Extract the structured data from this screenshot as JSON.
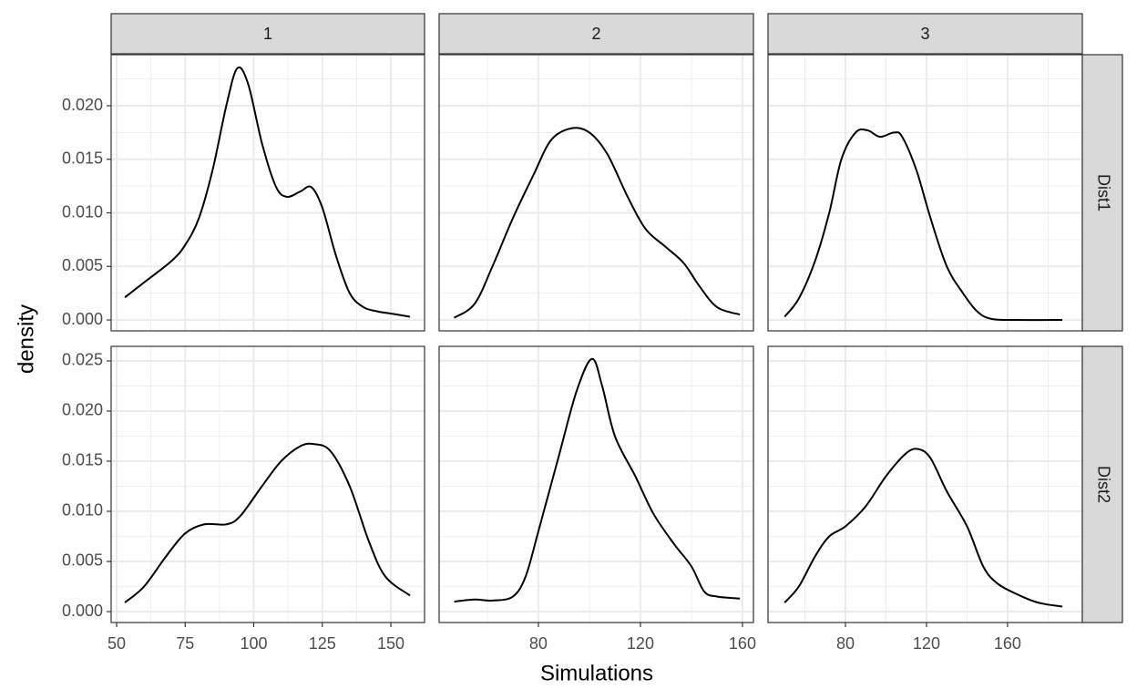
{
  "chart_data": {
    "type": "line",
    "x_label": "Simulations",
    "y_label": "density",
    "color": "#000000",
    "columns": [
      {
        "label": "1",
        "xlim": [
          48.0,
          162.3
        ],
        "xticks": [
          50,
          75,
          100,
          125,
          150
        ],
        "xminor": [
          62.5,
          87.5,
          112.5,
          137.5
        ]
      },
      {
        "label": "2",
        "xlim": [
          41.1,
          164.3
        ],
        "xticks": [
          80,
          120,
          160
        ],
        "xminor": [
          60,
          100,
          140
        ]
      },
      {
        "label": "3",
        "xlim": [
          41.8,
          196.9
        ],
        "xticks": [
          80,
          120,
          160
        ],
        "xminor": [
          60,
          100,
          140,
          180
        ]
      }
    ],
    "rows": [
      {
        "label": "Dist1",
        "ylim": [
          -0.00102,
          0.02477
        ],
        "yticks": [
          {
            "value": 0,
            "label": "0.000"
          },
          {
            "value": 0.005,
            "label": "0.005"
          },
          {
            "value": 0.01,
            "label": "0.010"
          },
          {
            "value": 0.015,
            "label": "0.015"
          },
          {
            "value": 0.02,
            "label": "0.020"
          }
        ],
        "yminor": [
          0.0025,
          0.0075,
          0.0125,
          0.0175,
          0.0225
        ],
        "panels": [
          {
            "x": [
              53,
              60,
              70,
              75,
              80,
              85,
              90,
              94,
              98,
              103,
              108,
              112,
              117,
              121,
              125,
              130,
              135,
              140,
              145,
              150,
              157
            ],
            "values": [
              0.0021,
              0.0035,
              0.0055,
              0.007,
              0.0095,
              0.014,
              0.02,
              0.0235,
              0.022,
              0.0165,
              0.0125,
              0.0115,
              0.012,
              0.0124,
              0.0105,
              0.006,
              0.0025,
              0.0012,
              0.0008,
              0.0006,
              0.0003
            ]
          },
          {
            "x": [
              47,
              55,
              62,
              70,
              78,
              85,
              93,
              100,
              107,
              115,
              122,
              130,
              137,
              143,
              150,
              159
            ],
            "values": [
              0.0002,
              0.0015,
              0.005,
              0.0095,
              0.0135,
              0.0168,
              0.0179,
              0.0175,
              0.0155,
              0.0115,
              0.0085,
              0.0068,
              0.0053,
              0.0032,
              0.0012,
              0.0005
            ]
          },
          {
            "x": [
              50,
              57,
              65,
              72,
              78,
              85,
              91,
              97,
              104,
              108,
              115,
              122,
              130,
              138,
              145,
              152,
              165,
              187
            ],
            "values": [
              0.0003,
              0.002,
              0.0055,
              0.01,
              0.015,
              0.0175,
              0.0177,
              0.0171,
              0.0175,
              0.0171,
              0.014,
              0.0095,
              0.005,
              0.0025,
              0.0008,
              0.0001,
              0,
              0
            ]
          }
        ]
      },
      {
        "label": "Dist2",
        "ylim": [
          -0.00109,
          0.02645
        ],
        "yticks": [
          {
            "value": 0,
            "label": "0.000"
          },
          {
            "value": 0.005,
            "label": "0.005"
          },
          {
            "value": 0.01,
            "label": "0.010"
          },
          {
            "value": 0.015,
            "label": "0.015"
          },
          {
            "value": 0.02,
            "label": "0.020"
          },
          {
            "value": 0.025,
            "label": "0.025"
          }
        ],
        "yminor": [
          0.0025,
          0.0075,
          0.0125,
          0.0175,
          0.0225
        ],
        "panels": [
          {
            "x": [
              53,
              60,
              68,
              75,
              82,
              90,
              95,
              103,
              110,
              117,
              122,
              128,
              135,
              142,
              148,
              157
            ],
            "values": [
              0.0009,
              0.0025,
              0.0055,
              0.0078,
              0.0087,
              0.0087,
              0.0095,
              0.0125,
              0.015,
              0.0165,
              0.0167,
              0.016,
              0.0125,
              0.007,
              0.0035,
              0.0016
            ]
          },
          {
            "x": [
              47,
              55,
              62,
              70,
              75,
              80,
              88,
              95,
              101,
              105,
              110,
              118,
              125,
              133,
              140,
              145,
              150,
              159
            ],
            "values": [
              0.001,
              0.0012,
              0.0011,
              0.0015,
              0.0035,
              0.008,
              0.0155,
              0.022,
              0.0252,
              0.0225,
              0.0175,
              0.0135,
              0.0098,
              0.0068,
              0.0045,
              0.002,
              0.0015,
              0.0013
            ]
          },
          {
            "x": [
              50,
              57,
              65,
              72,
              80,
              90,
              100,
              110,
              116,
              122,
              130,
              140,
              148,
              155,
              165,
              175,
              187
            ],
            "values": [
              0.0009,
              0.0025,
              0.0055,
              0.0075,
              0.0085,
              0.0105,
              0.0135,
              0.0158,
              0.0162,
              0.0153,
              0.012,
              0.0085,
              0.0045,
              0.0028,
              0.0017,
              0.0009,
              0.0005
            ]
          }
        ]
      }
    ]
  }
}
